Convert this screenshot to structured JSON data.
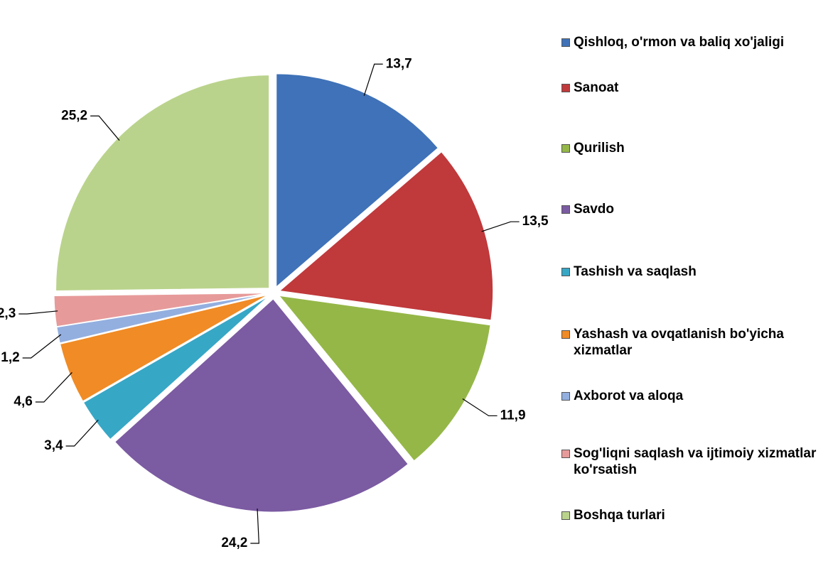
{
  "chart_data": {
    "type": "pie",
    "categories": [
      "Qishloq, o'rmon va baliq xo'jaligi",
      "Sanoat",
      "Qurilish",
      "Savdo",
      "Tashish va saqlash",
      "Yashash va ovqatlanish bo'yicha xizmatlar",
      "Axborot va aloqa",
      "Sog'liqni saqlash va ijtimoiy xizmatlar ko'rsatish",
      "Boshqa turlari"
    ],
    "values": [
      13.7,
      13.5,
      11.9,
      24.2,
      3.4,
      4.6,
      1.2,
      2.3,
      25.2
    ],
    "value_labels": [
      "13,7",
      "13,5",
      "11,9",
      "24,2",
      "3,4",
      "4,6",
      "1,2",
      "2,3",
      "25,2"
    ],
    "colors": [
      "#3f72b8",
      "#c0393b",
      "#95b748",
      "#7b5ba2",
      "#37a7c6",
      "#f08b25",
      "#93afe0",
      "#e79a9a",
      "#bad38c"
    ],
    "legend": "right"
  }
}
